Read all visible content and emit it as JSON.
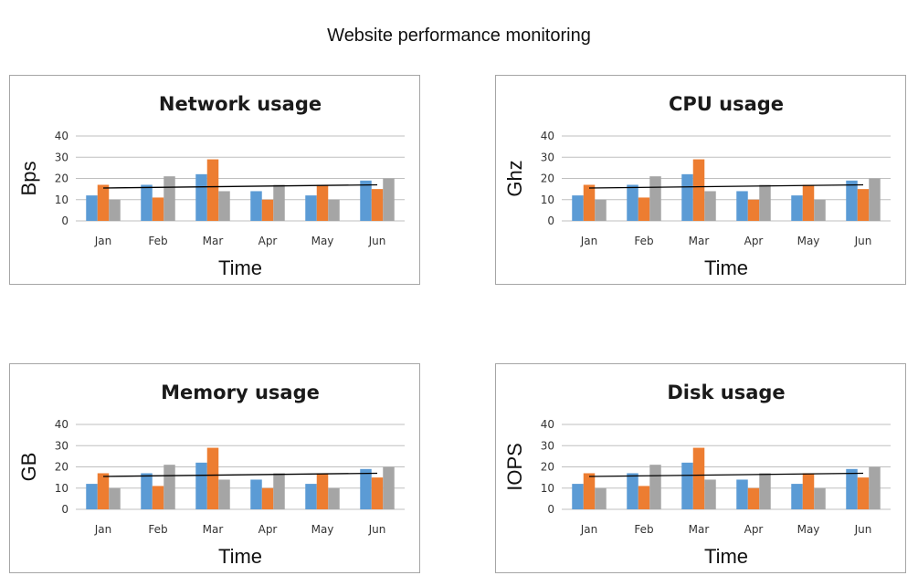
{
  "page": {
    "title": "Website performance monitoring"
  },
  "colors": {
    "series1": "#5b9bd5",
    "series2": "#ed7d31",
    "series3": "#a5a5a5",
    "trend": "#000000",
    "grid": "#bfbfbf"
  },
  "chart_data": [
    {
      "type": "bar",
      "title": "Network usage",
      "xlabel": "Time",
      "ylabel": "Bps",
      "ylim": [
        0,
        40
      ],
      "yticks": [
        0,
        10,
        20,
        30,
        40
      ],
      "grid": true,
      "legend": "none",
      "categories": [
        "Jan",
        "Feb",
        "Mar",
        "Apr",
        "May",
        "Jun"
      ],
      "series": [
        {
          "values": [
            12,
            17,
            22,
            14,
            12,
            19
          ]
        },
        {
          "values": [
            17,
            11,
            29,
            10,
            17,
            15
          ]
        },
        {
          "values": [
            10,
            21,
            14,
            17,
            10,
            20
          ]
        }
      ],
      "trendline": {
        "start": 15.5,
        "end": 17
      }
    },
    {
      "type": "bar",
      "title": "CPU usage",
      "xlabel": "Time",
      "ylabel": "Ghz",
      "ylim": [
        0,
        40
      ],
      "yticks": [
        0,
        10,
        20,
        30,
        40
      ],
      "grid": true,
      "legend": "none",
      "categories": [
        "Jan",
        "Feb",
        "Mar",
        "Apr",
        "May",
        "Jun"
      ],
      "series": [
        {
          "values": [
            12,
            17,
            22,
            14,
            12,
            19
          ]
        },
        {
          "values": [
            17,
            11,
            29,
            10,
            17,
            15
          ]
        },
        {
          "values": [
            10,
            21,
            14,
            17,
            10,
            20
          ]
        }
      ],
      "trendline": {
        "start": 15.5,
        "end": 17
      }
    },
    {
      "type": "bar",
      "title": "Memory usage",
      "xlabel": "Time",
      "ylabel": "GB",
      "ylim": [
        0,
        40
      ],
      "yticks": [
        0,
        10,
        20,
        30,
        40
      ],
      "grid": true,
      "legend": "none",
      "categories": [
        "Jan",
        "Feb",
        "Mar",
        "Apr",
        "May",
        "Jun"
      ],
      "series": [
        {
          "values": [
            12,
            17,
            22,
            14,
            12,
            19
          ]
        },
        {
          "values": [
            17,
            11,
            29,
            10,
            17,
            15
          ]
        },
        {
          "values": [
            10,
            21,
            14,
            17,
            10,
            20
          ]
        }
      ],
      "trendline": {
        "start": 15.5,
        "end": 17
      }
    },
    {
      "type": "bar",
      "title": "Disk usage",
      "xlabel": "Time",
      "ylabel": "IOPS",
      "ylim": [
        0,
        40
      ],
      "yticks": [
        0,
        10,
        20,
        30,
        40
      ],
      "grid": true,
      "legend": "none",
      "categories": [
        "Jan",
        "Feb",
        "Mar",
        "Apr",
        "May",
        "Jun"
      ],
      "series": [
        {
          "values": [
            12,
            17,
            22,
            14,
            12,
            19
          ]
        },
        {
          "values": [
            17,
            11,
            29,
            10,
            17,
            15
          ]
        },
        {
          "values": [
            10,
            21,
            14,
            17,
            10,
            20
          ]
        }
      ],
      "trendline": {
        "start": 15.5,
        "end": 17
      }
    }
  ]
}
